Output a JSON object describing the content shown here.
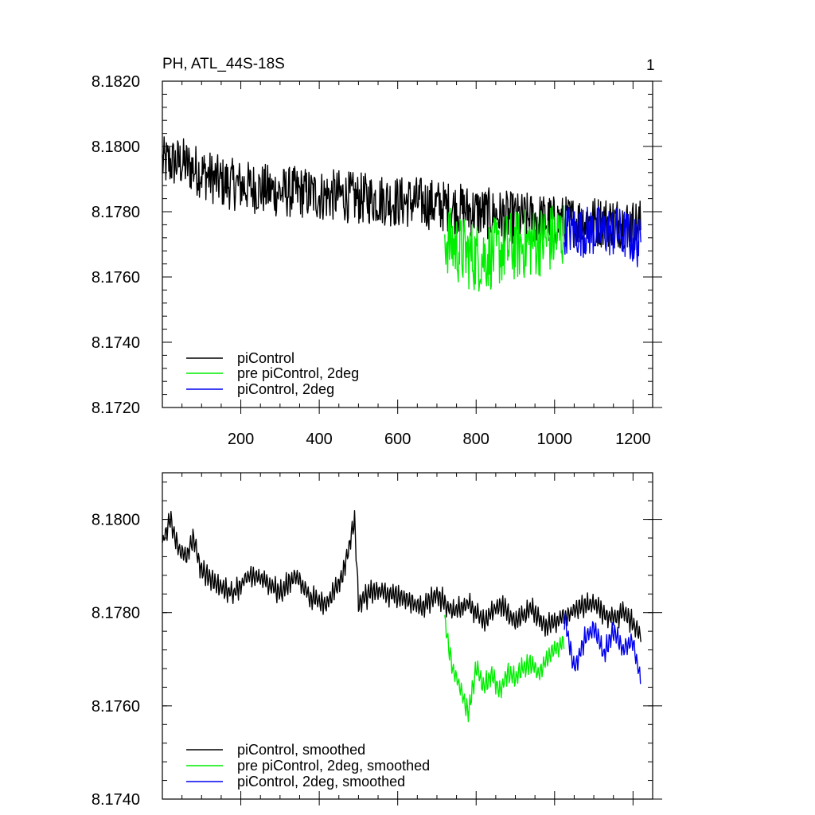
{
  "chart_data": [
    {
      "type": "line",
      "title": "PH, ATL_44S-18S",
      "panel_label": "1",
      "xlim": [
        0,
        1250
      ],
      "ylim": [
        8.172,
        8.182
      ],
      "x_ticks": [
        200,
        400,
        600,
        800,
        1000,
        1200
      ],
      "x_tick_labels": [
        "200",
        "400",
        "600",
        "800",
        "1000",
        "1200"
      ],
      "y_ticks": [
        8.172,
        8.174,
        8.176,
        8.178,
        8.18,
        8.182
      ],
      "y_tick_labels": [
        "8.1720",
        "8.1740",
        "8.1760",
        "8.1780",
        "8.1800",
        "8.1820"
      ],
      "series": [
        {
          "name": "piControl",
          "color": "#000000",
          "x": [
            0,
            50,
            100,
            150,
            200,
            250,
            300,
            350,
            400,
            450,
            500,
            550,
            600,
            650,
            700,
            750,
            800,
            850,
            900,
            950,
            1000,
            1050,
            1100,
            1150,
            1200,
            1220
          ],
          "y": [
            8.1795,
            8.1795,
            8.1792,
            8.1789,
            8.1788,
            8.1787,
            8.1786,
            8.1786,
            8.1785,
            8.1785,
            8.1784,
            8.1784,
            8.1783,
            8.1783,
            8.1782,
            8.1781,
            8.178,
            8.1779,
            8.1778,
            8.1778,
            8.1777,
            8.1777,
            8.1777,
            8.1777,
            8.1776,
            8.1776
          ]
        },
        {
          "name": "pre piControl, 2deg",
          "color": "#00ee00",
          "x": [
            720,
            760,
            800,
            840,
            880,
            920,
            960,
            1000,
            1025
          ],
          "y": [
            8.1772,
            8.1768,
            8.1766,
            8.1767,
            8.1769,
            8.177,
            8.1771,
            8.1772,
            8.1773
          ]
        },
        {
          "name": "piControl, 2deg",
          "color": "#0000ee",
          "x": [
            1025,
            1060,
            1100,
            1140,
            1180,
            1220
          ],
          "y": [
            8.1775,
            8.1774,
            8.1774,
            8.1774,
            8.1773,
            8.177
          ]
        }
      ]
    },
    {
      "type": "line",
      "xlim": [
        0,
        1250
      ],
      "ylim": [
        8.174,
        8.181
      ],
      "x_ticks": [
        200,
        400,
        600,
        800,
        1000,
        1200
      ],
      "y_ticks": [
        8.174,
        8.176,
        8.178,
        8.18
      ],
      "y_tick_labels": [
        "8.1740",
        "8.1760",
        "8.1780",
        "8.1800"
      ],
      "series": [
        {
          "name": "piControl, smoothed",
          "color": "#000000",
          "x": [
            0,
            20,
            40,
            60,
            80,
            100,
            140,
            180,
            220,
            260,
            300,
            340,
            380,
            420,
            460,
            490,
            500,
            540,
            580,
            620,
            660,
            700,
            740,
            780,
            820,
            860,
            900,
            940,
            980,
            1020,
            1060,
            1100,
            1140,
            1180,
            1220
          ],
          "y": [
            8.1795,
            8.18,
            8.1794,
            8.1792,
            8.1796,
            8.1789,
            8.1786,
            8.1784,
            8.1788,
            8.1787,
            8.1784,
            8.1788,
            8.1783,
            8.1782,
            8.1788,
            8.18,
            8.1782,
            8.1785,
            8.1784,
            8.1783,
            8.1781,
            8.1784,
            8.178,
            8.1782,
            8.1778,
            8.1782,
            8.1778,
            8.1781,
            8.1777,
            8.1779,
            8.1781,
            8.1782,
            8.1779,
            8.178,
            8.1775
          ]
        },
        {
          "name": "pre piControl, 2deg, smoothed",
          "color": "#00ee00",
          "x": [
            720,
            740,
            760,
            780,
            800,
            820,
            840,
            860,
            880,
            900,
            920,
            940,
            960,
            980,
            1000,
            1025
          ],
          "y": [
            8.1778,
            8.1768,
            8.1764,
            8.1758,
            8.1768,
            8.1764,
            8.1767,
            8.1763,
            8.1767,
            8.1766,
            8.1768,
            8.1769,
            8.1767,
            8.177,
            8.1772,
            8.1774
          ]
        },
        {
          "name": "piControl, 2deg, smoothed",
          "color": "#0000ee",
          "x": [
            1025,
            1050,
            1075,
            1100,
            1125,
            1150,
            1175,
            1200,
            1220
          ],
          "y": [
            8.1779,
            8.1768,
            8.1774,
            8.1777,
            8.1771,
            8.1776,
            8.1772,
            8.1774,
            8.1765
          ]
        }
      ]
    }
  ]
}
